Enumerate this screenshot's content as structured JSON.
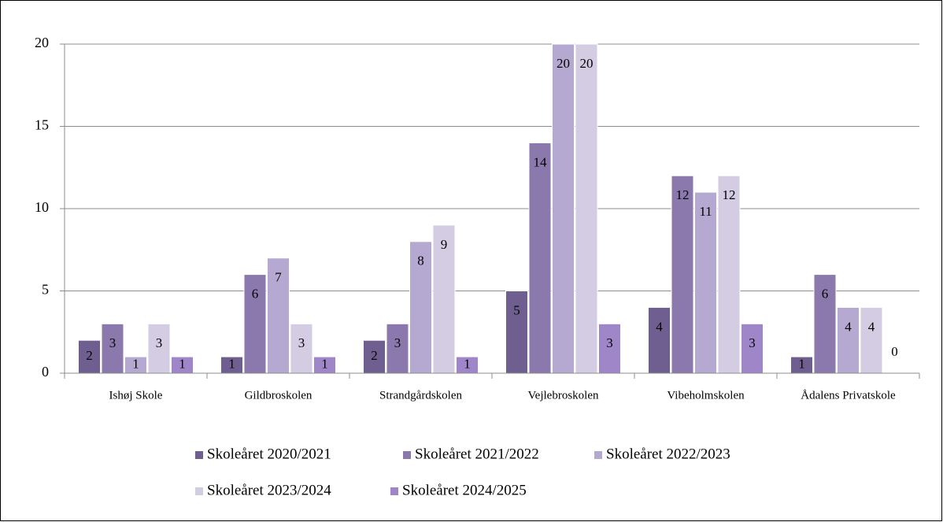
{
  "chart_data": {
    "type": "bar",
    "categories": [
      "Ishøj Skole",
      "Gildbroskolen",
      "Strandgårdskolen",
      "Vejlebroskolen",
      "Vibeholmskolen",
      "Ådalens Privatskole"
    ],
    "series": [
      {
        "name": "Skoleåret 2020/2021",
        "color": "#6f5f90",
        "values": [
          2,
          1,
          2,
          5,
          4,
          1
        ]
      },
      {
        "name": "Skoleåret 2021/2022",
        "color": "#8b78ad",
        "values": [
          3,
          6,
          3,
          14,
          12,
          6
        ]
      },
      {
        "name": "Skoleåret 2022/2023",
        "color": "#b6a9d1",
        "values": [
          1,
          7,
          8,
          20,
          11,
          4
        ]
      },
      {
        "name": "Skoleåret 2023/2024",
        "color": "#d3cce3",
        "values": [
          3,
          3,
          9,
          20,
          12,
          4
        ]
      },
      {
        "name": "Skoleåret 2024/2025",
        "color": "#9f86c8",
        "values": [
          1,
          1,
          1,
          3,
          3,
          0
        ]
      }
    ],
    "ylim": [
      0,
      20
    ],
    "yticks": [
      0,
      5,
      10,
      15,
      20
    ],
    "grid": true,
    "legend": "bottom"
  }
}
